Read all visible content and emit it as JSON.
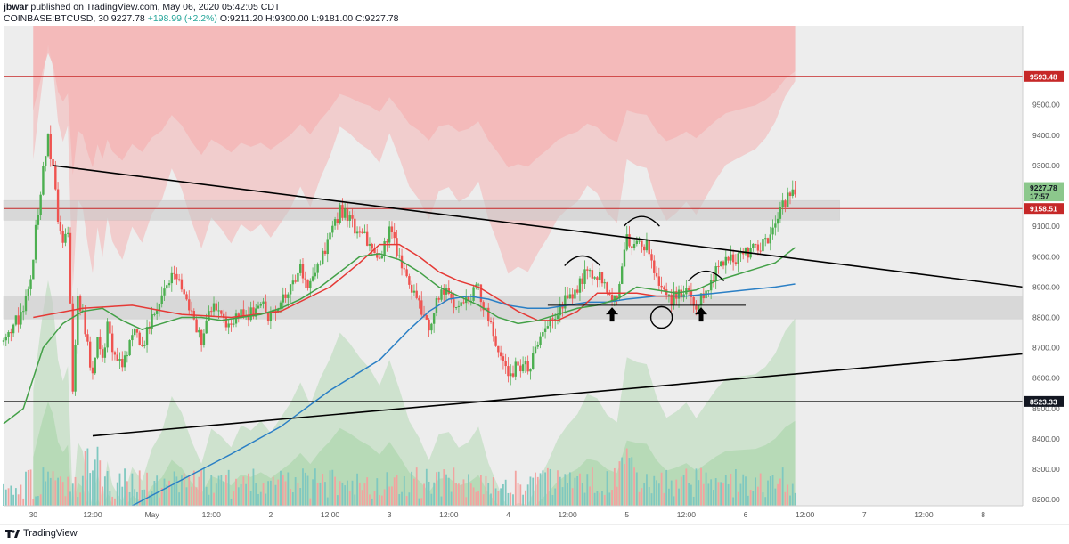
{
  "header": {
    "author": "jbwar",
    "published_text": "published on TradingView.com, May 06, 2020 05:42:05 CDT",
    "symbol": "COINBASE:BTCUSD, 30",
    "last": "9227.78",
    "change": "+198.99 (+2.2%)",
    "ohlc": "O:9211.20 H:9300.00 L:9181.00 C:9227.78"
  },
  "footer": {
    "brand": "TradingView"
  },
  "colors": {
    "background": "#ededed",
    "bull": "#4caf50",
    "bear": "#ef5350",
    "trendline": "#000000",
    "ma_blue": "#2a7fc5",
    "ma_green": "#43a047",
    "ma_red": "#e53935",
    "red_band": "#f4b3b3",
    "green_band": "#a8d5a8",
    "level_red": "#c62828"
  },
  "chart_data": {
    "type": "candlestick",
    "y_axis": {
      "ylim": [
        8180,
        9760
      ],
      "ticks": [
        8200,
        8300,
        8400,
        8500,
        8600,
        8700,
        8800,
        8900,
        9000,
        9100,
        9200,
        9300,
        9400,
        9500
      ],
      "tick_labels": [
        "8200.00",
        "8300.00",
        "8400.00",
        "8500.00",
        "8600.00",
        "8700.00",
        "8800.00",
        "8900.00",
        "9000.00",
        "9100.00",
        "9200.00",
        "9300.00",
        "9400.00",
        "9500.00"
      ]
    },
    "x_axis": {
      "ticks": [
        {
          "t": 0,
          "label": "30"
        },
        {
          "t": 12,
          "label": "12:00"
        },
        {
          "t": 24,
          "label": "May"
        },
        {
          "t": 36,
          "label": "12:00"
        },
        {
          "t": 48,
          "label": "2"
        },
        {
          "t": 60,
          "label": "12:00"
        },
        {
          "t": 72,
          "label": "3"
        },
        {
          "t": 84,
          "label": "12:00"
        },
        {
          "t": 96,
          "label": "4"
        },
        {
          "t": 108,
          "label": "12:00"
        },
        {
          "t": 120,
          "label": "5"
        },
        {
          "t": 132,
          "label": "12:00"
        },
        {
          "t": 144,
          "label": "6"
        },
        {
          "t": 156,
          "label": "12:00"
        },
        {
          "t": 168,
          "label": "7"
        },
        {
          "t": 180,
          "label": "12:00"
        },
        {
          "t": 192,
          "label": "8"
        }
      ],
      "xlim": [
        -6,
        200
      ],
      "last_t": 154
    },
    "price_labels": [
      {
        "value": 9593.48,
        "text": "9593.48",
        "style": "red"
      },
      {
        "value": 9227.78,
        "text": "9227.78",
        "style": "green"
      },
      {
        "value": 9200,
        "text": "17:57",
        "style": "timer"
      },
      {
        "value": 9158.51,
        "text": "9158.51",
        "style": "red"
      },
      {
        "value": 8523.33,
        "text": "8523.33",
        "style": "black"
      }
    ],
    "horizontal_levels": [
      {
        "value": 9593.48,
        "color": "red"
      },
      {
        "value": 9158.51,
        "color": "red"
      },
      {
        "value": 8523.33,
        "color": "black"
      }
    ],
    "zones": [
      {
        "from": 9120,
        "to": 9185,
        "t_start": -6,
        "t_end": 163
      },
      {
        "from": 8795,
        "to": 8870,
        "t_start": -6,
        "t_end": 200
      }
    ],
    "trendlines": [
      {
        "t1": 4,
        "p1": 9300,
        "t2": 200,
        "p2": 8900
      },
      {
        "t1": 12,
        "p1": 8410,
        "t2": 200,
        "p2": 8680
      },
      {
        "t1": 104,
        "p1": 8840,
        "t2": 144,
        "p2": 8840
      }
    ],
    "price_path": [
      [
        -6,
        8720
      ],
      [
        -3,
        8800
      ],
      [
        -1,
        8880
      ],
      [
        1,
        9150
      ],
      [
        2,
        9280
      ],
      [
        3,
        9380
      ],
      [
        4,
        9300
      ],
      [
        5,
        9120
      ],
      [
        6,
        9050
      ],
      [
        7,
        9100
      ],
      [
        8,
        8560
      ],
      [
        9,
        8850
      ],
      [
        10,
        8820
      ],
      [
        11,
        8700
      ],
      [
        12,
        8600
      ],
      [
        13,
        8750
      ],
      [
        14,
        8650
      ],
      [
        15,
        8780
      ],
      [
        16,
        8700
      ],
      [
        18,
        8640
      ],
      [
        20,
        8750
      ],
      [
        22,
        8700
      ],
      [
        24,
        8800
      ],
      [
        26,
        8850
      ],
      [
        28,
        8960
      ],
      [
        30,
        8900
      ],
      [
        32,
        8800
      ],
      [
        34,
        8720
      ],
      [
        36,
        8830
      ],
      [
        38,
        8800
      ],
      [
        40,
        8760
      ],
      [
        42,
        8830
      ],
      [
        44,
        8810
      ],
      [
        46,
        8840
      ],
      [
        48,
        8800
      ],
      [
        50,
        8850
      ],
      [
        52,
        8900
      ],
      [
        54,
        8970
      ],
      [
        56,
        8900
      ],
      [
        58,
        8990
      ],
      [
        60,
        9060
      ],
      [
        62,
        9150
      ],
      [
        64,
        9120
      ],
      [
        66,
        9080
      ],
      [
        68,
        9050
      ],
      [
        70,
        9000
      ],
      [
        72,
        9090
      ],
      [
        74,
        9000
      ],
      [
        76,
        8900
      ],
      [
        78,
        8850
      ],
      [
        80,
        8780
      ],
      [
        82,
        8870
      ],
      [
        84,
        8880
      ],
      [
        86,
        8830
      ],
      [
        88,
        8850
      ],
      [
        90,
        8900
      ],
      [
        92,
        8780
      ],
      [
        94,
        8700
      ],
      [
        96,
        8610
      ],
      [
        98,
        8640
      ],
      [
        100,
        8630
      ],
      [
        102,
        8700
      ],
      [
        104,
        8760
      ],
      [
        106,
        8830
      ],
      [
        108,
        8870
      ],
      [
        110,
        8900
      ],
      [
        112,
        8960
      ],
      [
        114,
        8940
      ],
      [
        116,
        8880
      ],
      [
        118,
        8850
      ],
      [
        120,
        9060
      ],
      [
        122,
        9040
      ],
      [
        124,
        9030
      ],
      [
        126,
        8920
      ],
      [
        128,
        8850
      ],
      [
        130,
        8870
      ],
      [
        132,
        8900
      ],
      [
        134,
        8850
      ],
      [
        136,
        8900
      ],
      [
        138,
        8950
      ],
      [
        140,
        8990
      ],
      [
        142,
        9000
      ],
      [
        144,
        9010
      ],
      [
        146,
        9020
      ],
      [
        148,
        9050
      ],
      [
        150,
        9100
      ],
      [
        152,
        9180
      ],
      [
        154,
        9228
      ]
    ],
    "ma_blue": [
      [
        20,
        8180
      ],
      [
        40,
        8350
      ],
      [
        50,
        8440
      ],
      [
        60,
        8560
      ],
      [
        70,
        8660
      ],
      [
        76,
        8760
      ],
      [
        80,
        8820
      ],
      [
        84,
        8860
      ],
      [
        88,
        8870
      ],
      [
        92,
        8860
      ],
      [
        96,
        8840
      ],
      [
        100,
        8830
      ],
      [
        104,
        8830
      ],
      [
        108,
        8840
      ],
      [
        112,
        8850
      ],
      [
        116,
        8850
      ],
      [
        120,
        8860
      ],
      [
        126,
        8870
      ],
      [
        132,
        8870
      ],
      [
        138,
        8880
      ],
      [
        144,
        8890
      ],
      [
        150,
        8900
      ],
      [
        154,
        8910
      ]
    ],
    "ma_green": [
      [
        -6,
        8450
      ],
      [
        -2,
        8500
      ],
      [
        0,
        8600
      ],
      [
        2,
        8700
      ],
      [
        4,
        8740
      ],
      [
        6,
        8780
      ],
      [
        10,
        8820
      ],
      [
        14,
        8830
      ],
      [
        18,
        8790
      ],
      [
        22,
        8760
      ],
      [
        26,
        8780
      ],
      [
        30,
        8800
      ],
      [
        34,
        8800
      ],
      [
        38,
        8790
      ],
      [
        42,
        8800
      ],
      [
        46,
        8810
      ],
      [
        50,
        8830
      ],
      [
        54,
        8860
      ],
      [
        58,
        8900
      ],
      [
        62,
        8950
      ],
      [
        66,
        9000
      ],
      [
        70,
        9010
      ],
      [
        74,
        8990
      ],
      [
        78,
        8950
      ],
      [
        82,
        8900
      ],
      [
        86,
        8870
      ],
      [
        90,
        8840
      ],
      [
        94,
        8800
      ],
      [
        98,
        8780
      ],
      [
        102,
        8790
      ],
      [
        106,
        8810
      ],
      [
        110,
        8830
      ],
      [
        114,
        8840
      ],
      [
        118,
        8860
      ],
      [
        122,
        8900
      ],
      [
        126,
        8890
      ],
      [
        130,
        8880
      ],
      [
        134,
        8890
      ],
      [
        138,
        8920
      ],
      [
        142,
        8940
      ],
      [
        146,
        8960
      ],
      [
        150,
        8980
      ],
      [
        154,
        9030
      ]
    ],
    "ma_red": [
      [
        0,
        8800
      ],
      [
        10,
        8830
      ],
      [
        20,
        8840
      ],
      [
        30,
        8810
      ],
      [
        40,
        8800
      ],
      [
        50,
        8820
      ],
      [
        60,
        8900
      ],
      [
        66,
        8980
      ],
      [
        70,
        9040
      ],
      [
        74,
        9040
      ],
      [
        78,
        9000
      ],
      [
        82,
        8950
      ],
      [
        86,
        8920
      ],
      [
        90,
        8900
      ],
      [
        94,
        8860
      ],
      [
        98,
        8820
      ],
      [
        102,
        8790
      ],
      [
        106,
        8790
      ],
      [
        110,
        8820
      ],
      [
        114,
        8880
      ],
      [
        118,
        8880
      ],
      [
        122,
        8880
      ],
      [
        126,
        8870
      ],
      [
        130,
        8870
      ]
    ],
    "annotations": {
      "arcs": [
        {
          "t": 111,
          "p": 8970
        },
        {
          "t": 123,
          "p": 9100
        },
        {
          "t": 136,
          "p": 8920
        }
      ],
      "up_arrows": [
        {
          "t": 117,
          "p": 8810
        },
        {
          "t": 135,
          "p": 8810
        }
      ],
      "circle": {
        "t": 127,
        "p": 8800
      }
    },
    "grid": false
  }
}
